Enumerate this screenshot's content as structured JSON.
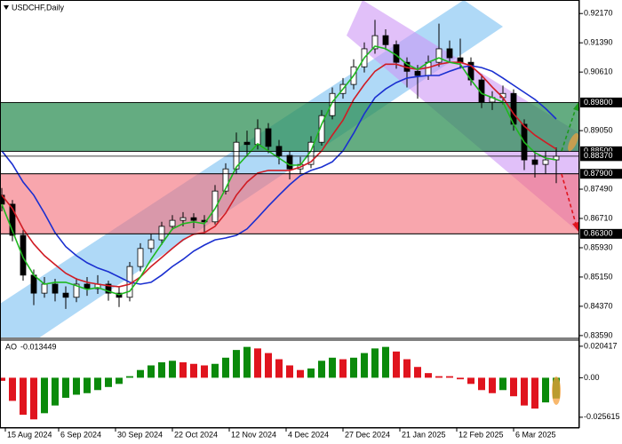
{
  "chart_data": [
    {
      "type": "candlestick",
      "title": "USDCHF,Daily",
      "x": [
        0,
        3,
        6,
        9,
        12,
        15,
        18,
        21,
        24,
        27,
        30,
        33,
        36,
        39,
        42,
        45,
        48,
        51,
        54,
        57,
        60,
        63,
        66,
        69,
        72,
        75,
        78,
        81,
        84,
        87,
        90,
        93,
        96,
        99,
        102,
        105,
        108,
        111,
        114,
        117,
        120,
        123,
        126,
        129,
        132,
        135,
        138,
        141,
        144,
        147,
        150,
        153,
        156
      ],
      "open": [
        0.8733,
        0.8709,
        0.8626,
        0.852,
        0.8472,
        0.8496,
        0.8472,
        0.8461,
        0.8496,
        0.8484,
        0.8496,
        0.8472,
        0.8461,
        0.8543,
        0.8591,
        0.8614,
        0.865,
        0.8666,
        0.8673,
        0.8666,
        0.8662,
        0.8744,
        0.8803,
        0.8874,
        0.8868,
        0.891,
        0.8863,
        0.8839,
        0.8803,
        0.8815,
        0.8874,
        0.8945,
        0.9004,
        0.9028,
        0.9075,
        0.9123,
        0.9158,
        0.9134,
        0.9087,
        0.9063,
        0.9052,
        0.9087,
        0.9123,
        0.9099,
        0.9087,
        0.904,
        0.8981,
        0.8993,
        0.9004,
        0.8922,
        0.8827,
        0.8815,
        0.8827
      ],
      "high": [
        0.8752,
        0.872,
        0.864,
        0.8535,
        0.8515,
        0.851,
        0.849,
        0.8512,
        0.8515,
        0.852,
        0.8505,
        0.849,
        0.8555,
        0.8605,
        0.863,
        0.8662,
        0.868,
        0.8688,
        0.8685,
        0.868,
        0.876,
        0.8818,
        0.89,
        0.8905,
        0.8935,
        0.8925,
        0.888,
        0.885,
        0.8835,
        0.889,
        0.896,
        0.902,
        0.9045,
        0.9095,
        0.914,
        0.92,
        0.9175,
        0.9145,
        0.91,
        0.908,
        0.9105,
        0.919,
        0.9145,
        0.915,
        0.91,
        0.9055,
        0.901,
        0.9025,
        0.9015,
        0.8935,
        0.885,
        0.885,
        0.886
      ],
      "low": [
        0.869,
        0.861,
        0.8505,
        0.844,
        0.846,
        0.845,
        0.843,
        0.8448,
        0.8465,
        0.847,
        0.8452,
        0.8435,
        0.845,
        0.853,
        0.858,
        0.86,
        0.864,
        0.865,
        0.8645,
        0.8632,
        0.8655,
        0.8735,
        0.879,
        0.884,
        0.8855,
        0.8845,
        0.8815,
        0.8775,
        0.879,
        0.8805,
        0.8865,
        0.8935,
        0.899,
        0.9015,
        0.906,
        0.911,
        0.912,
        0.907,
        0.902,
        0.899,
        0.904,
        0.9075,
        0.9085,
        0.907,
        0.9025,
        0.8965,
        0.896,
        0.8975,
        0.8905,
        0.88,
        0.878,
        0.879,
        0.8765
      ],
      "close": [
        0.8709,
        0.8626,
        0.852,
        0.8472,
        0.8496,
        0.8472,
        0.8461,
        0.8496,
        0.8484,
        0.8496,
        0.8472,
        0.8461,
        0.8543,
        0.8591,
        0.8614,
        0.865,
        0.8666,
        0.8673,
        0.8666,
        0.8662,
        0.8744,
        0.8803,
        0.8874,
        0.8868,
        0.891,
        0.8863,
        0.8839,
        0.8803,
        0.8815,
        0.8874,
        0.8945,
        0.9004,
        0.9028,
        0.9075,
        0.9123,
        0.9158,
        0.9134,
        0.9087,
        0.9063,
        0.9052,
        0.9087,
        0.9123,
        0.9099,
        0.9087,
        0.904,
        0.8981,
        0.8993,
        0.9004,
        0.8922,
        0.8827,
        0.8815,
        0.8827,
        0.8837
      ],
      "candle_color": "#000000",
      "up_fill": "#ffffff",
      "down_fill": "#000000",
      "series": [
        {
          "color": "#1a2fd0",
          "values": [
            0.8851,
            0.8815,
            0.8768,
            0.8733,
            0.8685,
            0.8633,
            0.8596,
            0.8572,
            0.8553,
            0.8539,
            0.8529,
            0.8515,
            0.8501,
            0.8496,
            0.8501,
            0.852,
            0.8543,
            0.8562,
            0.8584,
            0.86,
            0.8614,
            0.8619,
            0.8626,
            0.8643,
            0.8673,
            0.8704,
            0.8733,
            0.8761,
            0.8785,
            0.8799,
            0.8808,
            0.8822,
            0.8851,
            0.8898,
            0.895,
            0.8993,
            0.9016,
            0.9033,
            0.9045,
            0.9049,
            0.9052,
            0.9052,
            0.9063,
            0.9073,
            0.9078,
            0.9073,
            0.9063,
            0.9045,
            0.9026,
            0.9007,
            0.8988,
            0.8964,
            0.8936
          ]
        },
        {
          "color": "#d01c24",
          "values": [
            0.8733,
            0.8697,
            0.8643,
            0.8603,
            0.8572,
            0.8548,
            0.8525,
            0.851,
            0.8501,
            0.8496,
            0.8492,
            0.8489,
            0.8496,
            0.8515,
            0.8543,
            0.8567,
            0.8591,
            0.8614,
            0.8629,
            0.8633,
            0.865,
            0.8685,
            0.8733,
            0.8768,
            0.8792,
            0.8799,
            0.8799,
            0.8799,
            0.8808,
            0.8822,
            0.8851,
            0.8893,
            0.8933,
            0.8988,
            0.9028,
            0.9063,
            0.9082,
            0.9082,
            0.9073,
            0.9068,
            0.9073,
            0.9082,
            0.9087,
            0.9087,
            0.9078,
            0.9052,
            0.9021,
            0.8993,
            0.895,
            0.8917,
            0.8893,
            0.8874,
            0.8856
          ]
        },
        {
          "color": "#1fb81f",
          "values": [
            0.8709,
            0.8638,
            0.8567,
            0.852,
            0.8496,
            0.8501,
            0.8501,
            0.8492,
            0.8482,
            0.8487,
            0.8477,
            0.8468,
            0.8477,
            0.8515,
            0.8562,
            0.8603,
            0.8643,
            0.8657,
            0.8662,
            0.8657,
            0.8697,
            0.8751,
            0.8808,
            0.8839,
            0.887,
            0.8851,
            0.8832,
            0.8813,
            0.8813,
            0.8851,
            0.8922,
            0.8981,
            0.9016,
            0.9052,
            0.9099,
            0.913,
            0.9123,
            0.9106,
            0.9082,
            0.9068,
            0.9087,
            0.9099,
            0.9087,
            0.9082,
            0.904,
            0.9004,
            0.8993,
            0.8981,
            0.8922,
            0.8874,
            0.8846,
            0.8832,
            0.8827
          ]
        }
      ],
      "xlim": [
        -0.5,
        162.5
      ],
      "ylim": [
        0.8354,
        0.9253
      ],
      "yticks": [
        {
          "value": 0.9217,
          "label": "0.92170"
        },
        {
          "value": 0.9139,
          "label": "0.91390"
        },
        {
          "value": 0.9061,
          "label": "0.90610"
        },
        {
          "value": 0.8905,
          "label": "0.89050"
        },
        {
          "value": 0.8749,
          "label": "0.87490"
        },
        {
          "value": 0.8671,
          "label": "0.86710"
        },
        {
          "value": 0.8593,
          "label": "0.85930"
        },
        {
          "value": 0.8515,
          "label": "0.85150"
        },
        {
          "value": 0.8437,
          "label": "0.84370"
        },
        {
          "value": 0.8359,
          "label": "0.83590"
        }
      ],
      "levels": [
        {
          "value": 0.898,
          "label": "0.89800"
        },
        {
          "value": 0.885,
          "label": "0.88500"
        },
        {
          "value": 0.8837,
          "label": "0.88370"
        },
        {
          "value": 0.879,
          "label": "0.87900"
        },
        {
          "value": 0.863,
          "label": "0.86300"
        }
      ],
      "zones": [
        {
          "range": [
            0.898,
            0.885
          ],
          "color": "rgba(40,140,80,0.72)"
        },
        {
          "range": [
            0.879,
            0.863
          ],
          "color": "rgba(244,112,122,0.62)"
        }
      ]
    },
    {
      "type": "bar",
      "title": "AO",
      "x": [
        0,
        3,
        6,
        9,
        12,
        15,
        18,
        21,
        24,
        27,
        30,
        33,
        36,
        39,
        42,
        45,
        48,
        51,
        54,
        57,
        60,
        63,
        66,
        69,
        72,
        75,
        78,
        81,
        84,
        87,
        90,
        93,
        96,
        99,
        102,
        105,
        108,
        111,
        114,
        117,
        120,
        123,
        126,
        129,
        132,
        135,
        138,
        141,
        144,
        147,
        150,
        153,
        156
      ],
      "values": [
        -0.002,
        -0.015,
        -0.024,
        -0.027,
        -0.023,
        -0.018,
        -0.013,
        -0.011,
        -0.01,
        -0.008,
        -0.006,
        -0.004,
        0.001,
        0.005,
        0.008,
        0.01,
        0.011,
        0.01,
        0.009,
        0.008,
        0.009,
        0.013,
        0.018,
        0.02,
        0.019,
        0.016,
        0.012,
        0.008,
        0.005,
        0.006,
        0.011,
        0.013,
        0.012,
        0.013,
        0.016,
        0.019,
        0.02,
        0.017,
        0.012,
        0.007,
        0.003,
        0.001,
        0.001,
        -0.001,
        -0.004,
        -0.008,
        -0.01,
        -0.008,
        -0.012,
        -0.018,
        -0.02,
        -0.016,
        -0.013449
      ],
      "up_color": "#0b8a0b",
      "down_color": "#e0141e",
      "xlim": [
        -0.5,
        162.5
      ],
      "ylim": [
        -0.0326,
        0.0244
      ],
      "yticks": [
        0.020417,
        {
          "value": 0,
          "label": "0.00"
        },
        -0.025615
      ],
      "xticks": [
        {
          "value": 1,
          "label": "15 Aug 2024"
        },
        {
          "value": 16,
          "label": "6 Sep 2024"
        },
        {
          "value": 32,
          "label": "30 Sep 2024"
        },
        {
          "value": 48,
          "label": "22 Oct 2024"
        },
        {
          "value": 64,
          "label": "12 Nov 2024"
        },
        {
          "value": 80,
          "label": "4 Dec 2024"
        },
        {
          "value": 96,
          "label": "27 Dec 2024"
        },
        {
          "value": 112,
          "label": "21 Jan 2025"
        },
        {
          "value": 128,
          "label": "12 Feb 2025"
        },
        {
          "value": 144,
          "label": "6 Mar 2025"
        }
      ]
    }
  ]
}
